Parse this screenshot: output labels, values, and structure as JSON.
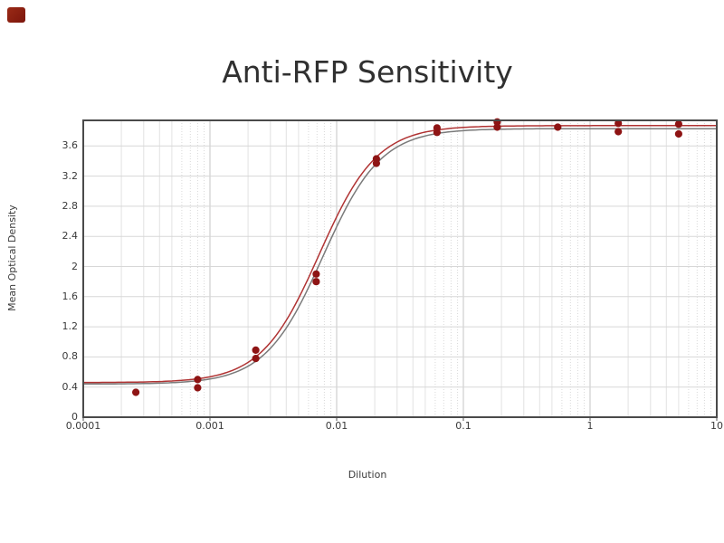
{
  "corner_mark": {
    "color": "#8a1c12"
  },
  "chart_data": {
    "type": "scatter",
    "title": "Anti-RFP Sensitivity",
    "xlabel": "Dilution",
    "ylabel": "Mean Optical Density",
    "x_scale": "log",
    "xlim": [
      0.0001,
      10
    ],
    "ylim": [
      0,
      3.94
    ],
    "grid": true,
    "legend": "none",
    "x_tick_values": [
      0.0001,
      0.001,
      0.01,
      0.1,
      1,
      10
    ],
    "x_tick_labels": [
      "0.0001",
      "0.001",
      "0.01",
      "0.1",
      "1",
      "10"
    ],
    "y_tick_values": [
      0,
      0.4,
      0.8,
      1.2,
      1.6,
      2,
      2.4,
      2.8,
      3.2,
      3.6
    ],
    "y_tick_labels": [
      "0",
      "0.4",
      "0.8",
      "1.2",
      "1.6",
      "2",
      "2.4",
      "2.8",
      "3.2",
      "3.6"
    ],
    "points": [
      [
        0.00026,
        0.33
      ],
      [
        0.0008,
        0.5
      ],
      [
        0.0008,
        0.39
      ],
      [
        0.0023,
        0.89
      ],
      [
        0.0023,
        0.78
      ],
      [
        0.0069,
        1.9
      ],
      [
        0.0069,
        1.8
      ],
      [
        0.0206,
        3.43
      ],
      [
        0.0206,
        3.37
      ],
      [
        0.062,
        3.84
      ],
      [
        0.062,
        3.78
      ],
      [
        0.185,
        3.92
      ],
      [
        0.185,
        3.85
      ],
      [
        0.556,
        3.85
      ],
      [
        1.67,
        3.9
      ],
      [
        1.67,
        3.79
      ],
      [
        5.0,
        3.89
      ],
      [
        5.0,
        3.76
      ]
    ],
    "point_color": "#8e1414",
    "fit_model": "4PL",
    "fit_curves": [
      {
        "name": "fit-curve-gray",
        "color": "#7a7a7a",
        "bottom": 0.44,
        "top": 3.83,
        "ec50": 0.0078,
        "hill": 1.9
      },
      {
        "name": "fit-curve-red",
        "color": "#b03333",
        "bottom": 0.46,
        "top": 3.87,
        "ec50": 0.0073,
        "hill": 1.9
      }
    ],
    "style": {
      "border_color": "#4a4a4a",
      "decade_grid_color": "#c4c4c4",
      "minor_grid_color": "#e2e2e2",
      "minor_dotted_grid_color": "#d9d9d9",
      "horizontal_grid_color": "#d7d7d7",
      "tick_color": "#555555"
    }
  }
}
